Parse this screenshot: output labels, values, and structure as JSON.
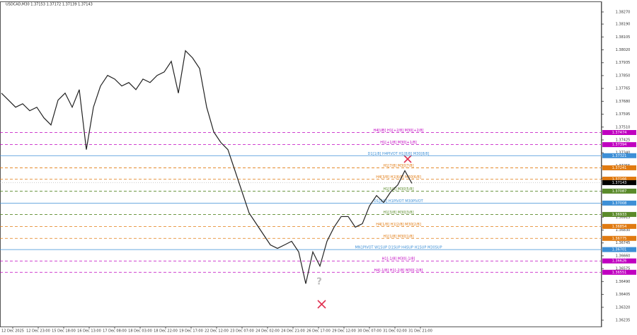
{
  "chart_data": {
    "type": "line",
    "title": "USDCAD,M30  1.37153 1.37172 1.37139 1.37143",
    "color": "#222222",
    "values": [
      1.37734,
      1.37688,
      1.37641,
      1.37664,
      1.37618,
      1.37641,
      1.37571,
      1.37524,
      1.37688,
      1.37734,
      1.37641,
      1.37757,
      1.37361,
      1.37641,
      1.37781,
      1.37851,
      1.37827,
      1.37781,
      1.37804,
      1.37757,
      1.37827,
      1.37804,
      1.37851,
      1.37874,
      1.37944,
      1.37734,
      1.38014,
      1.37967,
      1.37897,
      1.37641,
      1.37478,
      1.37408,
      1.37361,
      1.37222,
      1.37082,
      1.36942,
      1.36872,
      1.36802,
      1.36732,
      1.36709,
      1.36732,
      1.36756,
      1.36686,
      1.36476,
      1.36686,
      1.36592,
      1.36756,
      1.36849,
      1.36919,
      1.36919,
      1.36849,
      1.36872,
      1.36989,
      1.37058,
      1.37012,
      1.37082,
      1.37128,
      1.37222,
      1.37138
    ],
    "current_price": 1.37143,
    "ylim": [
      1.36193,
      1.38335
    ],
    "yticks": [
      {
        "value": 1.3827,
        "label": "1.38270"
      },
      {
        "value": 1.3819,
        "label": "1.38190"
      },
      1.38105,
      {
        "value": 1.3802,
        "label": "1.38020"
      },
      1.37935,
      {
        "value": 1.3785,
        "label": "1.37850"
      },
      1.37765,
      {
        "value": 1.3768,
        "label": "1.37680"
      },
      1.37595,
      {
        "value": 1.3751,
        "label": "1.37510"
      },
      1.37425,
      {
        "value": 1.3734,
        "label": "1.37340"
      },
      1.37255,
      {
        "value": 1.3717,
        "label": "1.37170"
      },
      1.37085,
      {
        "value": 1.37,
        "label": "1.37000"
      },
      1.36915,
      {
        "value": 1.3683,
        "label": "1.36830"
      },
      1.36745,
      {
        "value": 1.3666,
        "label": "1.36660"
      },
      1.36575,
      {
        "value": 1.3649,
        "label": "1.36490"
      },
      1.36405,
      {
        "value": 1.3632,
        "label": "1.36320"
      },
      1.36235
    ],
    "time_labels": [
      "12 Dec 2025",
      "12 Dec 23:00",
      "15 Dec 18:00",
      "16 Dec 13:00",
      "17 Dec 08:00",
      "18 Dec 03:00",
      "18 Dec 22:00",
      "19 Dec 17:00",
      "22 Dec 12:00",
      "23 Dec 07:00",
      "24 Dec 02:00",
      "24 Dec 21:00",
      "26 Dec 17:00",
      "29 Dec 12:00",
      "30 Dec 07:00",
      "31 Dec 02:00",
      "31 Dec 21:00"
    ],
    "levels": [
      {
        "label": "H4[UB] H1[+2/8] M30[+2/8]",
        "value": 1.37474,
        "color": "#c000c0",
        "style": "dashed"
      },
      {
        "label": "H1[+1/8] M30[+1/8]",
        "value": 1.37394,
        "color": "#c000c0",
        "style": "dashed"
      },
      {
        "label": "D1[1/8] H4PIVOT H1[8/8] M30[8/8]",
        "value": 1.37321,
        "color": "#3d8fd6",
        "style": "solid"
      },
      {
        "label": "H1[7/8] M30[7/8]",
        "value": 1.37241,
        "color": "#e07a10",
        "style": "dashed"
      },
      {
        "label": "H4[3/8] H1[6/8] M30[6/8]",
        "value": 1.37166,
        "color": "#e07a10",
        "style": "dashed"
      },
      {
        "label": "H1[5/8] M30[5/8]",
        "value": 1.37087,
        "color": "#5a8a2a",
        "style": "dashed"
      },
      {
        "label": "D1[2/8] H1PIVOT M30PIVOT",
        "value": 1.37008,
        "color": "#3d8fd6",
        "style": "solid"
      },
      {
        "label": "H1[3/8] M30[3/8]",
        "value": 1.36933,
        "color": "#5a8a2a",
        "style": "dashed"
      },
      {
        "label": "H4[1/8] H1[2/8] M30[2/8]",
        "value": 1.36854,
        "color": "#e07a10",
        "style": "dashed"
      },
      {
        "label": "H1[1/8] M30[1/8]",
        "value": 1.36775,
        "color": "#e07a10",
        "style": "dashed"
      },
      {
        "label": "MN1PIVOT W1SUP D1SUP H4SUP H1SUP M30SUP",
        "value": 1.36701,
        "color": "#3d8fd6",
        "style": "solid"
      },
      {
        "label": "H1[-1/8] M30[-1/8]",
        "value": 1.36626,
        "color": "#c000c0",
        "style": "dashed"
      },
      {
        "label": "H4[-1/8] H1[-2/8] M30[-2/8]",
        "value": 1.36551,
        "color": "#c000c0",
        "style": "dashed"
      }
    ],
    "annotation": "?"
  }
}
